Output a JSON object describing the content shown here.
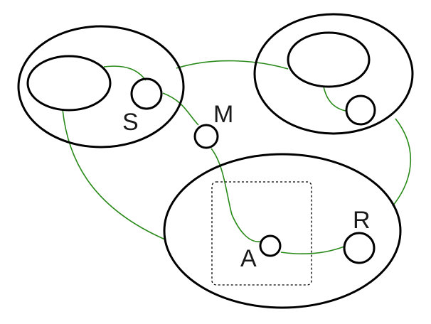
{
  "colors": {
    "stroke": "#000000",
    "edge": "#2a8a1a",
    "label": "#1a1a1a",
    "background": "#ffffff"
  },
  "labels": {
    "s": "S",
    "m": "M",
    "a": "A",
    "r": "R"
  }
}
